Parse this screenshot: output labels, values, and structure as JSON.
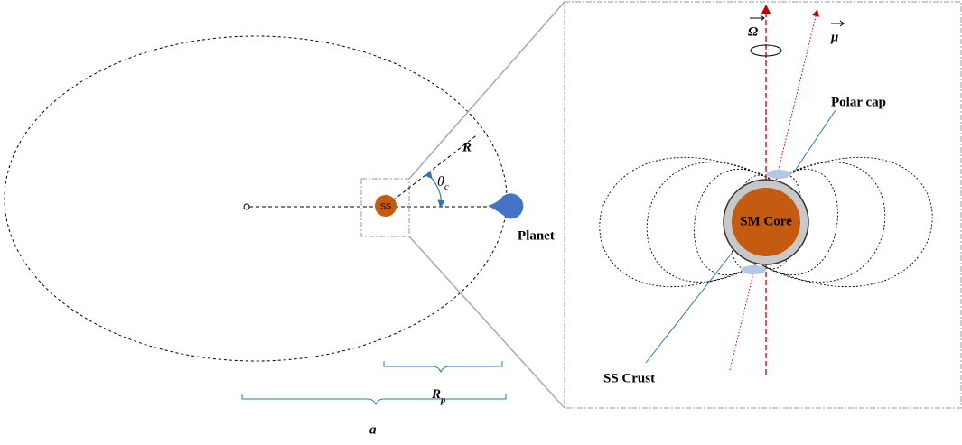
{
  "left": {
    "star": "SS",
    "radius": "R",
    "angle": {
      "base": "θ",
      "sub": "c"
    },
    "planet": "Planet",
    "periapsis": {
      "base": "R",
      "sub": "p"
    },
    "semi_major": "a"
  },
  "right": {
    "spin": "Ω",
    "magnetic": "μ",
    "polar_cap": "Polar cap",
    "core": "SM Core",
    "crust": "SS Crust"
  }
}
